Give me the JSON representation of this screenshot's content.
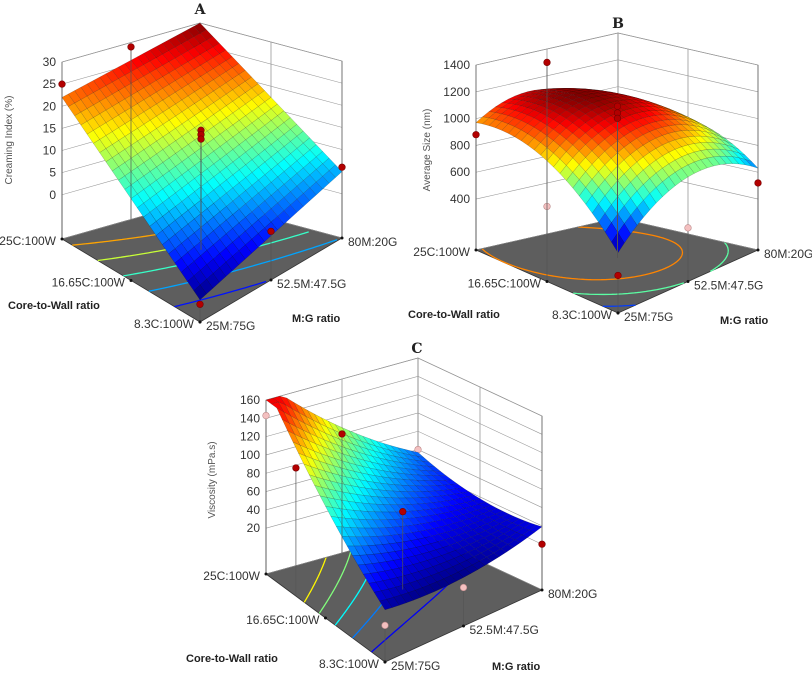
{
  "chart_data": [
    {
      "type": "surface",
      "title": "A",
      "zlabel": "Creaming Index (%)",
      "xlabel": "Core-to-Wall ratio",
      "ylabel": "M:G ratio",
      "x_ticks": [
        "25C:100W",
        "16.65C:100W",
        "8.3C:100W"
      ],
      "y_ticks": [
        "25M:75G",
        "52.5M:47.5G",
        "80M:20G"
      ],
      "z_ticks": [
        0,
        5,
        10,
        15,
        20,
        25,
        30
      ],
      "zlim": [
        -10,
        30
      ],
      "model_coded": {
        "b0": 13,
        "b1": 13,
        "b2": 4.5,
        "b12": -0.5,
        "b11": 0,
        "b22": 0
      },
      "contours": [
        20,
        15,
        10,
        5,
        0
      ],
      "points": [
        {
          "cw": 25,
          "mg": 25,
          "z": 25,
          "above": true
        },
        {
          "cw": 25,
          "mg": 52.5,
          "z": 29,
          "above": true
        },
        {
          "cw": 16.65,
          "mg": 52.5,
          "z": 17,
          "above": true
        },
        {
          "cw": 16.65,
          "mg": 52.5,
          "z": 16,
          "above": true
        },
        {
          "cw": 16.65,
          "mg": 52.5,
          "z": 15,
          "above": true
        },
        {
          "cw": 8.3,
          "mg": 80,
          "z": 6,
          "above": true
        },
        {
          "cw": 8.3,
          "mg": 52.5,
          "z": 1,
          "above": true
        },
        {
          "cw": 8.3,
          "mg": 25,
          "z": -6,
          "above": true
        },
        {
          "cw": 25,
          "mg": 80,
          "z": -8,
          "above": false
        }
      ]
    },
    {
      "type": "surface",
      "title": "B",
      "zlabel": "Average Size (nm)",
      "xlabel": "Core-to-Wall ratio",
      "ylabel": "M:G ratio",
      "x_ticks": [
        "25C:100W",
        "16.65C:100W",
        "8.3C:100W"
      ],
      "y_ticks": [
        "25M:75G",
        "52.5M:47.5G",
        "80M:20G"
      ],
      "z_ticks": [
        400,
        600,
        800,
        1000,
        1200,
        1400
      ],
      "zlim": [
        20,
        1400
      ],
      "model_coded": {
        "b0": 1150,
        "b1": 150,
        "b2": -20,
        "b12": -100,
        "b11": -200,
        "b22": -250
      },
      "contours": [
        1200,
        1000,
        800,
        600
      ],
      "points": [
        {
          "cw": 25,
          "mg": 25,
          "z": 880,
          "above": true
        },
        {
          "cw": 25,
          "mg": 52.5,
          "z": 1300,
          "above": true
        },
        {
          "cw": 16.65,
          "mg": 52.5,
          "z": 1150,
          "above": true
        },
        {
          "cw": 16.65,
          "mg": 52.5,
          "z": 1100,
          "above": true
        },
        {
          "cw": 16.65,
          "mg": 52.5,
          "z": 1060,
          "above": true
        },
        {
          "cw": 8.3,
          "mg": 80,
          "z": 520,
          "above": true
        },
        {
          "cw": 8.3,
          "mg": 25,
          "z": 300,
          "above": true
        },
        {
          "cw": 16.65,
          "mg": 25,
          "z": 580,
          "above": false
        },
        {
          "cw": 8.3,
          "mg": 52.5,
          "z": 420,
          "above": false
        }
      ]
    },
    {
      "type": "surface",
      "title": "C",
      "zlabel": "Viscosity (mPa.s)",
      "xlabel": "Core-to-Wall ratio",
      "ylabel": "M:G ratio",
      "x_ticks": [
        "25C:100W",
        "16.65C:100W",
        "8.3C:100W"
      ],
      "y_ticks": [
        "25M:75G",
        "52.5M:47.5G",
        "80M:20G"
      ],
      "z_ticks": [
        20,
        40,
        60,
        80,
        100,
        120,
        140,
        160
      ],
      "zlim": [
        -30,
        160
      ],
      "model_coded": {
        "b0": 55,
        "b1": 42,
        "b2": -27,
        "b12": -33,
        "b11": 10,
        "b22": 10
      },
      "contours": [
        120,
        100,
        80,
        60,
        40,
        20
      ],
      "points": [
        {
          "cw": 25,
          "mg": 25,
          "z": 143,
          "above": false
        },
        {
          "cw": 20.8,
          "mg": 25,
          "z": 110,
          "above": true
        },
        {
          "cw": 25,
          "mg": 52.5,
          "z": 100,
          "above": true
        },
        {
          "cw": 16.65,
          "mg": 52.5,
          "z": 55,
          "above": true
        },
        {
          "cw": 8.3,
          "mg": 80,
          "z": 20,
          "above": true
        },
        {
          "cw": 8.3,
          "mg": 25,
          "z": 10,
          "above": false
        },
        {
          "cw": 25,
          "mg": 80,
          "z": 60,
          "above": false
        },
        {
          "cw": 8.3,
          "mg": 52.5,
          "z": 12,
          "above": false
        }
      ]
    }
  ]
}
